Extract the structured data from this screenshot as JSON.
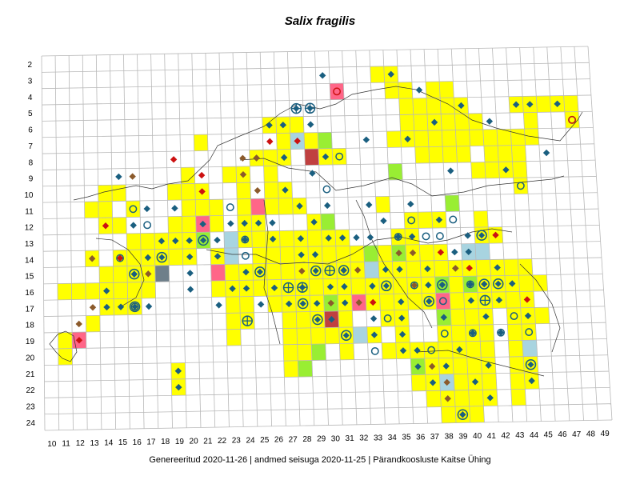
{
  "title": "Salix fragilis",
  "footer": "Genereeritud 2020-11-26  |  andmed seisuga 2020-11-25  |  Pärandkoosluste Kaitse Ühing",
  "row_labels": [
    "2",
    "3",
    "4",
    "5",
    "6",
    "7",
    "8",
    "9",
    "10",
    "11",
    "12",
    "13",
    "14",
    "15",
    "16",
    "17",
    "18",
    "19",
    "20",
    "21",
    "22",
    "23",
    "24"
  ],
  "col_labels": [
    "10",
    "11",
    "12",
    "13",
    "14",
    "15",
    "16",
    "17",
    "18",
    "19",
    "20",
    "21",
    "22",
    "23",
    "24",
    "25",
    "26",
    "27",
    "28",
    "29",
    "30",
    "31",
    "32",
    "33",
    "34",
    "35",
    "36",
    "37",
    "38",
    "39",
    "40",
    "41",
    "42",
    "43",
    "44",
    "45",
    "46",
    "47",
    "48",
    "49"
  ],
  "colors": {
    "yellow": "#ffff00",
    "green": "#99ee33",
    "pink": "#ff6688",
    "blue": "#a8d4e0",
    "darkred": "#c04040",
    "grey": "#6e7f8a",
    "marker_blue": "#1a5f80",
    "marker_brown": "#8b5a2b",
    "marker_red": "#cc1111",
    "grid": "#b8b8b8",
    "coast": "#333333"
  },
  "cells": {
    "yellow": [
      [
        21,
        4
      ],
      [
        22,
        4
      ],
      [
        22,
        5
      ],
      [
        23,
        5
      ],
      [
        24,
        5
      ],
      [
        25,
        5
      ],
      [
        26,
        5
      ],
      [
        24,
        6
      ],
      [
        25,
        6
      ],
      [
        27,
        6
      ],
      [
        28,
        6
      ],
      [
        29,
        6
      ],
      [
        30,
        6
      ],
      [
        31,
        6
      ],
      [
        33,
        6
      ],
      [
        34,
        6
      ],
      [
        35,
        6
      ],
      [
        36,
        6
      ],
      [
        37,
        6
      ],
      [
        40,
        6
      ],
      [
        41,
        6
      ],
      [
        38,
        7
      ],
      [
        39,
        7
      ],
      [
        40,
        7
      ],
      [
        41,
        7
      ],
      [
        43,
        7
      ],
      [
        44,
        7
      ],
      [
        45,
        7
      ],
      [
        46,
        7
      ],
      [
        47,
        7
      ],
      [
        48,
        7
      ],
      [
        49,
        7
      ],
      [
        38,
        8
      ],
      [
        39,
        8
      ],
      [
        42,
        8
      ],
      [
        43,
        8
      ],
      [
        46,
        8
      ],
      [
        47,
        8
      ],
      [
        48,
        8
      ],
      [
        42,
        9
      ],
      [
        43,
        9
      ],
      [
        46,
        9
      ],
      [
        47,
        9
      ],
      [
        38,
        10
      ],
      [
        39,
        10
      ],
      [
        41,
        10
      ],
      [
        42,
        10
      ],
      [
        47,
        10
      ],
      [
        43,
        11
      ],
      [
        44,
        11
      ],
      [
        45,
        11
      ],
      [
        43,
        12
      ],
      [
        44,
        12
      ],
      [
        45,
        12
      ],
      [
        16,
        12
      ],
      [
        17,
        12
      ],
      [
        17,
        13
      ],
      [
        18,
        13
      ],
      [
        16,
        14
      ],
      [
        17,
        14
      ],
      [
        18,
        14
      ],
      [
        19,
        14
      ],
      [
        20,
        14
      ],
      [
        21,
        14
      ],
      [
        22,
        14
      ],
      [
        23,
        14
      ],
      [
        24,
        14
      ],
      [
        25,
        14
      ],
      [
        26,
        14
      ],
      [
        27,
        14
      ],
      [
        28,
        14
      ],
      [
        23,
        15
      ],
      [
        24,
        15
      ],
      [
        25,
        15
      ],
      [
        26,
        15
      ],
      [
        27,
        15
      ],
      [
        28,
        15
      ],
      [
        29,
        15
      ],
      [
        30,
        15
      ],
      [
        31,
        15
      ],
      [
        32,
        15
      ],
      [
        33,
        15
      ],
      [
        34,
        15
      ],
      [
        35,
        15
      ],
      [
        36,
        15
      ],
      [
        37,
        15
      ],
      [
        38,
        15
      ],
      [
        39,
        15
      ],
      [
        40,
        15
      ],
      [
        41,
        15
      ],
      [
        42,
        15
      ],
      [
        43,
        15
      ],
      [
        44,
        15
      ],
      [
        45,
        15
      ],
      [
        46,
        15
      ],
      [
        47,
        15
      ],
      [
        48,
        15
      ],
      [
        49,
        15
      ],
      [
        50,
        15
      ],
      [
        51,
        15
      ],
      [
        52,
        15
      ],
      [
        17,
        16
      ],
      [
        18,
        16
      ],
      [
        19,
        16
      ],
      [
        20,
        16
      ],
      [
        22,
        16
      ],
      [
        23,
        16
      ],
      [
        24,
        16
      ],
      [
        25,
        16
      ],
      [
        26,
        16
      ],
      [
        27,
        16
      ],
      [
        28,
        16
      ],
      [
        29,
        16
      ],
      [
        30,
        16
      ],
      [
        31,
        16
      ],
      [
        32,
        16
      ],
      [
        33,
        16
      ],
      [
        34,
        16
      ],
      [
        35,
        16
      ],
      [
        36,
        16
      ],
      [
        38,
        16
      ],
      [
        39,
        16
      ],
      [
        40,
        16
      ],
      [
        41,
        16
      ],
      [
        42,
        16
      ],
      [
        43,
        16
      ],
      [
        44,
        16
      ],
      [
        45,
        16
      ],
      [
        46,
        16
      ],
      [
        47,
        16
      ],
      [
        48,
        16
      ],
      [
        49,
        16
      ],
      [
        50,
        16
      ],
      [
        51,
        16
      ],
      [
        52,
        16
      ],
      [
        53,
        16
      ],
      [
        54,
        16
      ],
      [
        21,
        17
      ],
      [
        22,
        17
      ],
      [
        23,
        17
      ],
      [
        24,
        17
      ],
      [
        25,
        17
      ],
      [
        26,
        17
      ],
      [
        27,
        17
      ],
      [
        28,
        17
      ],
      [
        29,
        17
      ],
      [
        30,
        17
      ],
      [
        31,
        17
      ],
      [
        32,
        17
      ],
      [
        33,
        17
      ],
      [
        34,
        17
      ],
      [
        35,
        17
      ],
      [
        36,
        17
      ],
      [
        37,
        17
      ],
      [
        38,
        17
      ],
      [
        39,
        17
      ],
      [
        40,
        17
      ],
      [
        41,
        17
      ],
      [
        42,
        17
      ],
      [
        43,
        17
      ],
      [
        44,
        17
      ],
      [
        45,
        17
      ],
      [
        46,
        17
      ],
      [
        47,
        17
      ],
      [
        48,
        17
      ],
      [
        49,
        17
      ],
      [
        50,
        17
      ],
      [
        51,
        17
      ],
      [
        52,
        17
      ],
      [
        53,
        17
      ],
      [
        54,
        17
      ],
      [
        16,
        18
      ],
      [
        17,
        18
      ],
      [
        18,
        18
      ],
      [
        19,
        18
      ],
      [
        20,
        18
      ],
      [
        21,
        18
      ],
      [
        22,
        18
      ],
      [
        23,
        18
      ],
      [
        24,
        18
      ],
      [
        25,
        18
      ],
      [
        26,
        18
      ],
      [
        27,
        18
      ],
      [
        28,
        18
      ],
      [
        29,
        18
      ],
      [
        30,
        18
      ],
      [
        31,
        18
      ],
      [
        32,
        18
      ],
      [
        33,
        18
      ],
      [
        34,
        18
      ],
      [
        35,
        18
      ],
      [
        36,
        18
      ],
      [
        37,
        18
      ],
      [
        38,
        18
      ],
      [
        39,
        18
      ],
      [
        40,
        18
      ],
      [
        41,
        18
      ],
      [
        42,
        18
      ],
      [
        43,
        18
      ],
      [
        44,
        18
      ],
      [
        45,
        18
      ],
      [
        46,
        18
      ],
      [
        47,
        18
      ],
      [
        48,
        18
      ],
      [
        49,
        18
      ],
      [
        50,
        18
      ],
      [
        51,
        18
      ],
      [
        52,
        18
      ],
      [
        53,
        18
      ],
      [
        54,
        18
      ]
    ],
    "green": [],
    "pink": [],
    "blue": [],
    "darkred": [],
    "grey": []
  },
  "markers": [],
  "highlights": [
    {
      "color": "yellow",
      "row": 3,
      "cols": [
        34,
        34
      ]
    }
  ]
}
